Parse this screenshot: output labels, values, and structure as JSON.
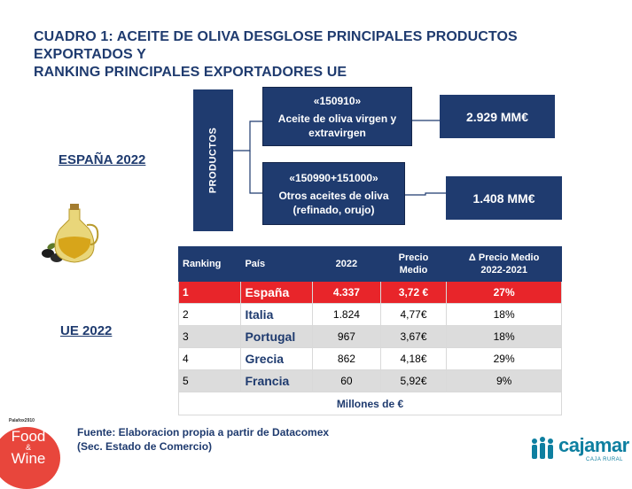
{
  "title": {
    "line1": "CUADRO 1: ACEITE DE OLIVA DESGLOSE PRINCIPALES PRODUCTOS EXPORTADOS Y",
    "line2": "RANKING PRINCIPALES EXPORTADORES UE"
  },
  "labels": {
    "espana": "ESPAÑA 2022",
    "ue": "UE 2022",
    "productos": "PRODUCTOS"
  },
  "products": [
    {
      "code": "«150910»",
      "name": "Aceite de oliva virgen y extravirgen",
      "value": "2.929 MM€"
    },
    {
      "code": "«150990+151000»",
      "name": "Otros aceites de oliva (refinado, orujo)",
      "value": "1.408 MM€"
    }
  ],
  "table": {
    "headers": {
      "ranking": "Ranking",
      "pais": "País",
      "year": "2022",
      "precio_l1": "Precio",
      "precio_l2": "Medio",
      "delta_l1": "Δ Precio Medio",
      "delta_l2": "2022-2021"
    },
    "rows": [
      {
        "rank": "1",
        "pais": "España",
        "value": "4.337",
        "precio": "3,72 €",
        "delta": "27%"
      },
      {
        "rank": "2",
        "pais": "Italia",
        "value": "1.824",
        "precio": "4,77€",
        "delta": "18%"
      },
      {
        "rank": "3",
        "pais": "Portugal",
        "value": "967",
        "precio": "3,67€",
        "delta": "18%"
      },
      {
        "rank": "4",
        "pais": "Grecia",
        "value": "862",
        "precio": "4,18€",
        "delta": "29%"
      },
      {
        "rank": "5",
        "pais": "Francia",
        "value": "60",
        "precio": "5,92€",
        "delta": "9%"
      }
    ],
    "footer": "Millones de €"
  },
  "source": {
    "line1": "Fuente: Elaboracion propia a partir de Datacomex",
    "line2": "(Sec. Estado de Comercio)"
  },
  "logos": {
    "fw_top": "Palafox2910",
    "fw_food": "Food",
    "fw_amp": "&",
    "fw_wine": "Wine",
    "cajamar": "cajamar",
    "cajamar_sub": "CAJA RURAL"
  },
  "colors": {
    "navy": "#1f3b6f",
    "red": "#e8252a",
    "grey": "#dcdcdc",
    "cajamar": "#0e7fa0",
    "fw": "#e8463c"
  }
}
